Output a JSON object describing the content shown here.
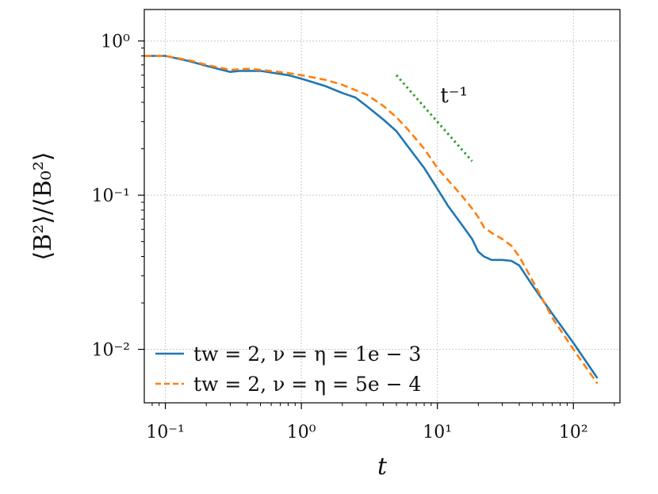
{
  "chart_data": {
    "type": "line",
    "xlabel": "t",
    "ylabel": "⟨B²⟩/⟨B₀²⟩",
    "xscale": "log",
    "yscale": "log",
    "xlim": [
      0.07,
      220
    ],
    "ylim": [
      0.0045,
      1.6
    ],
    "grid": true,
    "legend_position": "lower-left",
    "x_ticks": [
      {
        "value": 0.1,
        "label": "10⁻¹"
      },
      {
        "value": 1,
        "label": "10⁰"
      },
      {
        "value": 10,
        "label": "10¹"
      },
      {
        "value": 100,
        "label": "10²"
      }
    ],
    "y_ticks": [
      {
        "value": 0.01,
        "label": "10⁻²"
      },
      {
        "value": 0.1,
        "label": "10⁻¹"
      },
      {
        "value": 1,
        "label": "10⁰"
      }
    ],
    "series": [
      {
        "name": "tw = 2, ν = η = 1e − 3",
        "color": "#1f77b4",
        "style": "solid",
        "points": [
          [
            0.07,
            0.8
          ],
          [
            0.1,
            0.8
          ],
          [
            0.15,
            0.74
          ],
          [
            0.2,
            0.69
          ],
          [
            0.3,
            0.63
          ],
          [
            0.35,
            0.64
          ],
          [
            0.5,
            0.64
          ],
          [
            0.8,
            0.6
          ],
          [
            1.0,
            0.57
          ],
          [
            1.5,
            0.51
          ],
          [
            2.0,
            0.46
          ],
          [
            2.5,
            0.43
          ],
          [
            3.0,
            0.38
          ],
          [
            4.0,
            0.31
          ],
          [
            5.0,
            0.26
          ],
          [
            6.0,
            0.21
          ],
          [
            8.0,
            0.15
          ],
          [
            10.0,
            0.11
          ],
          [
            12.0,
            0.085
          ],
          [
            15.0,
            0.065
          ],
          [
            18.0,
            0.052
          ],
          [
            20.0,
            0.043
          ],
          [
            22.0,
            0.04
          ],
          [
            25.0,
            0.038
          ],
          [
            30.0,
            0.038
          ],
          [
            35.0,
            0.0375
          ],
          [
            40.0,
            0.035
          ],
          [
            50.0,
            0.026
          ],
          [
            70.0,
            0.017
          ],
          [
            100.0,
            0.011
          ],
          [
            150.0,
            0.0065
          ]
        ]
      },
      {
        "name": "tw = 2, ν = η = 5e − 4",
        "color": "#ff7f0e",
        "style": "dashed",
        "points": [
          [
            0.07,
            0.8
          ],
          [
            0.1,
            0.8
          ],
          [
            0.15,
            0.75
          ],
          [
            0.2,
            0.7
          ],
          [
            0.3,
            0.65
          ],
          [
            0.4,
            0.66
          ],
          [
            0.5,
            0.65
          ],
          [
            0.8,
            0.62
          ],
          [
            1.0,
            0.6
          ],
          [
            1.5,
            0.56
          ],
          [
            2.0,
            0.52
          ],
          [
            2.5,
            0.48
          ],
          [
            3.0,
            0.45
          ],
          [
            4.0,
            0.38
          ],
          [
            5.0,
            0.32
          ],
          [
            6.0,
            0.27
          ],
          [
            8.0,
            0.2
          ],
          [
            10.0,
            0.15
          ],
          [
            12.0,
            0.125
          ],
          [
            15.0,
            0.1
          ],
          [
            18.0,
            0.082
          ],
          [
            20.0,
            0.072
          ],
          [
            22.0,
            0.062
          ],
          [
            25.0,
            0.057
          ],
          [
            30.0,
            0.052
          ],
          [
            35.0,
            0.047
          ],
          [
            40.0,
            0.04
          ],
          [
            50.0,
            0.028
          ],
          [
            70.0,
            0.016
          ],
          [
            100.0,
            0.01
          ],
          [
            150.0,
            0.006
          ]
        ]
      },
      {
        "name": "",
        "color": "#2ca02c",
        "style": "dotted",
        "points": [
          [
            5.0,
            0.6
          ],
          [
            18.0,
            0.166
          ]
        ]
      }
    ],
    "annotations": [
      {
        "text": "t⁻¹",
        "x": 10.5,
        "y": 0.4
      }
    ]
  }
}
